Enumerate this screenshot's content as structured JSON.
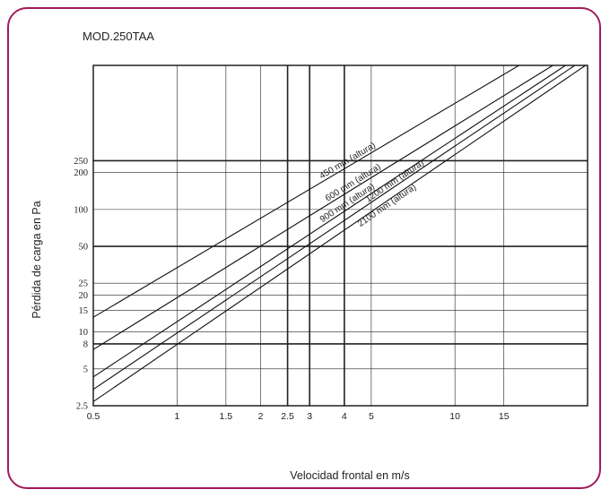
{
  "chart_data": {
    "type": "line",
    "title": "MOD.250TAA",
    "xlabel": "Velocidad frontal en m/s",
    "ylabel": "Pérdida de carga en Pa",
    "x_scale": "log",
    "y_scale": "log",
    "xlim": [
      0.5,
      30
    ],
    "ylim": [
      2.5,
      1500
    ],
    "grid": true,
    "x_ticks": [
      "0.5",
      "1",
      "1.5",
      "2",
      "2.5",
      "3",
      "4",
      "5",
      "10",
      "15"
    ],
    "y_ticks": [
      "2.5",
      "5",
      "8",
      "10",
      "15",
      "20",
      "25",
      "50",
      "100",
      "200",
      "250"
    ],
    "series": [
      {
        "name": "450 mm (altura)",
        "x": [
          0.5,
          17.0
        ],
        "y": [
          13.2,
          1500
        ]
      },
      {
        "name": "600 mm (altura)",
        "x": [
          0.5,
          22.5
        ],
        "y": [
          7.2,
          1500
        ]
      },
      {
        "name": "900 mm (altura)",
        "x": [
          0.5,
          25.0
        ],
        "y": [
          4.3,
          1500
        ]
      },
      {
        "name": "1200 mm (altura)",
        "x": [
          0.5,
          27.0
        ],
        "y": [
          3.4,
          1500
        ]
      },
      {
        "name": "2100 mm (altura)",
        "x": [
          0.5,
          29.5
        ],
        "y": [
          2.7,
          1500
        ]
      }
    ]
  }
}
